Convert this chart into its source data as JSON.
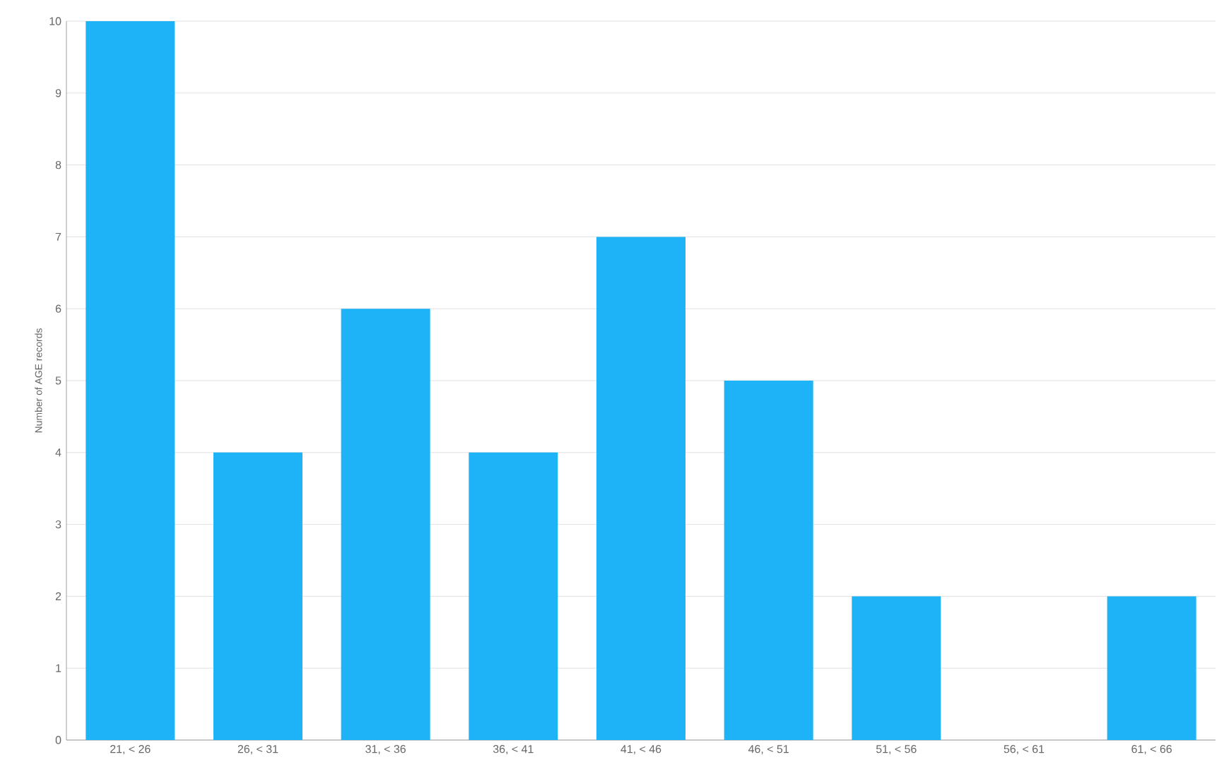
{
  "chart_data": {
    "type": "bar",
    "ylabel": "Number of AGE records",
    "categories": [
      "21, < 26",
      "26, < 31",
      "31, < 36",
      "36, < 41",
      "41, < 46",
      "46, < 51",
      "51, < 56",
      "56, < 61",
      "61, < 66"
    ],
    "values": [
      10,
      4,
      6,
      4,
      7,
      5,
      2,
      0,
      2
    ],
    "color": "#1eb2f6",
    "ylim": [
      0,
      10
    ],
    "yticks": [
      0,
      1,
      2,
      3,
      4,
      5,
      6,
      7,
      8,
      9,
      10
    ],
    "grid": "y"
  }
}
